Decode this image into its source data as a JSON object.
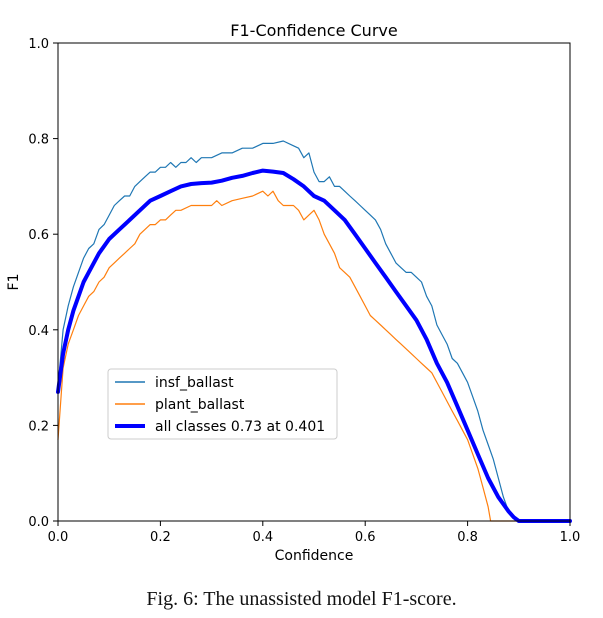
{
  "chart_data": {
    "type": "line",
    "title": "F1-Confidence Curve",
    "xlabel": "Confidence",
    "ylabel": "F1",
    "xlim": [
      0.0,
      1.0
    ],
    "ylim": [
      0.0,
      1.0
    ],
    "xticks": [
      0.0,
      0.2,
      0.4,
      0.6,
      0.8,
      1.0
    ],
    "yticks": [
      0.0,
      0.2,
      0.4,
      0.6,
      0.8,
      1.0
    ],
    "xtick_labels": [
      "0.0",
      "0.2",
      "0.4",
      "0.6",
      "0.8",
      "1.0"
    ],
    "ytick_labels": [
      "0.0",
      "0.2",
      "0.4",
      "0.6",
      "0.8",
      "1.0"
    ],
    "grid": false,
    "legend_position": "lower-left",
    "series": [
      {
        "name": "insf_ballast",
        "color": "#1f77b4",
        "width": "thin",
        "points": [
          [
            0.0,
            0.28
          ],
          [
            0.01,
            0.4
          ],
          [
            0.02,
            0.45
          ],
          [
            0.03,
            0.49
          ],
          [
            0.04,
            0.52
          ],
          [
            0.05,
            0.55
          ],
          [
            0.06,
            0.57
          ],
          [
            0.07,
            0.58
          ],
          [
            0.08,
            0.61
          ],
          [
            0.09,
            0.62
          ],
          [
            0.1,
            0.64
          ],
          [
            0.11,
            0.66
          ],
          [
            0.12,
            0.67
          ],
          [
            0.13,
            0.68
          ],
          [
            0.14,
            0.68
          ],
          [
            0.15,
            0.7
          ],
          [
            0.16,
            0.71
          ],
          [
            0.17,
            0.72
          ],
          [
            0.18,
            0.73
          ],
          [
            0.19,
            0.73
          ],
          [
            0.2,
            0.74
          ],
          [
            0.21,
            0.74
          ],
          [
            0.22,
            0.75
          ],
          [
            0.23,
            0.74
          ],
          [
            0.24,
            0.75
          ],
          [
            0.25,
            0.75
          ],
          [
            0.26,
            0.76
          ],
          [
            0.27,
            0.75
          ],
          [
            0.28,
            0.76
          ],
          [
            0.3,
            0.76
          ],
          [
            0.32,
            0.77
          ],
          [
            0.34,
            0.77
          ],
          [
            0.36,
            0.78
          ],
          [
            0.38,
            0.78
          ],
          [
            0.4,
            0.79
          ],
          [
            0.42,
            0.79
          ],
          [
            0.44,
            0.795
          ],
          [
            0.46,
            0.785
          ],
          [
            0.47,
            0.78
          ],
          [
            0.48,
            0.76
          ],
          [
            0.49,
            0.77
          ],
          [
            0.5,
            0.73
          ],
          [
            0.51,
            0.71
          ],
          [
            0.52,
            0.71
          ],
          [
            0.53,
            0.72
          ],
          [
            0.54,
            0.7
          ],
          [
            0.55,
            0.7
          ],
          [
            0.56,
            0.69
          ],
          [
            0.57,
            0.68
          ],
          [
            0.58,
            0.67
          ],
          [
            0.59,
            0.66
          ],
          [
            0.6,
            0.65
          ],
          [
            0.61,
            0.64
          ],
          [
            0.62,
            0.63
          ],
          [
            0.63,
            0.61
          ],
          [
            0.64,
            0.58
          ],
          [
            0.65,
            0.56
          ],
          [
            0.66,
            0.54
          ],
          [
            0.67,
            0.53
          ],
          [
            0.68,
            0.52
          ],
          [
            0.69,
            0.52
          ],
          [
            0.7,
            0.51
          ],
          [
            0.71,
            0.5
          ],
          [
            0.72,
            0.47
          ],
          [
            0.73,
            0.45
          ],
          [
            0.74,
            0.41
          ],
          [
            0.75,
            0.39
          ],
          [
            0.76,
            0.37
          ],
          [
            0.77,
            0.34
          ],
          [
            0.78,
            0.33
          ],
          [
            0.79,
            0.31
          ],
          [
            0.8,
            0.29
          ],
          [
            0.81,
            0.26
          ],
          [
            0.82,
            0.23
          ],
          [
            0.83,
            0.19
          ],
          [
            0.84,
            0.16
          ],
          [
            0.85,
            0.13
          ],
          [
            0.86,
            0.09
          ],
          [
            0.87,
            0.05
          ],
          [
            0.88,
            0.02
          ],
          [
            0.89,
            0.005
          ],
          [
            0.9,
            0.0
          ],
          [
            1.0,
            0.0
          ]
        ]
      },
      {
        "name": "plant_ballast",
        "color": "#ff7f0e",
        "width": "thin",
        "points": [
          [
            0.0,
            0.17
          ],
          [
            0.01,
            0.32
          ],
          [
            0.02,
            0.37
          ],
          [
            0.03,
            0.4
          ],
          [
            0.04,
            0.43
          ],
          [
            0.05,
            0.45
          ],
          [
            0.06,
            0.47
          ],
          [
            0.07,
            0.48
          ],
          [
            0.08,
            0.5
          ],
          [
            0.09,
            0.51
          ],
          [
            0.1,
            0.53
          ],
          [
            0.11,
            0.54
          ],
          [
            0.12,
            0.55
          ],
          [
            0.13,
            0.56
          ],
          [
            0.14,
            0.57
          ],
          [
            0.15,
            0.58
          ],
          [
            0.16,
            0.6
          ],
          [
            0.17,
            0.61
          ],
          [
            0.18,
            0.62
          ],
          [
            0.19,
            0.62
          ],
          [
            0.2,
            0.63
          ],
          [
            0.21,
            0.63
          ],
          [
            0.22,
            0.64
          ],
          [
            0.23,
            0.65
          ],
          [
            0.24,
            0.65
          ],
          [
            0.26,
            0.66
          ],
          [
            0.28,
            0.66
          ],
          [
            0.3,
            0.66
          ],
          [
            0.31,
            0.67
          ],
          [
            0.32,
            0.66
          ],
          [
            0.34,
            0.67
          ],
          [
            0.36,
            0.675
          ],
          [
            0.38,
            0.68
          ],
          [
            0.4,
            0.69
          ],
          [
            0.41,
            0.68
          ],
          [
            0.42,
            0.69
          ],
          [
            0.43,
            0.67
          ],
          [
            0.44,
            0.66
          ],
          [
            0.46,
            0.66
          ],
          [
            0.47,
            0.65
          ],
          [
            0.48,
            0.63
          ],
          [
            0.49,
            0.64
          ],
          [
            0.5,
            0.65
          ],
          [
            0.51,
            0.63
          ],
          [
            0.52,
            0.6
          ],
          [
            0.53,
            0.58
          ],
          [
            0.54,
            0.56
          ],
          [
            0.55,
            0.53
          ],
          [
            0.56,
            0.52
          ],
          [
            0.57,
            0.51
          ],
          [
            0.58,
            0.49
          ],
          [
            0.59,
            0.47
          ],
          [
            0.6,
            0.45
          ],
          [
            0.61,
            0.43
          ],
          [
            0.62,
            0.42
          ],
          [
            0.63,
            0.41
          ],
          [
            0.64,
            0.4
          ],
          [
            0.65,
            0.39
          ],
          [
            0.66,
            0.38
          ],
          [
            0.67,
            0.37
          ],
          [
            0.68,
            0.36
          ],
          [
            0.69,
            0.35
          ],
          [
            0.7,
            0.34
          ],
          [
            0.71,
            0.33
          ],
          [
            0.72,
            0.32
          ],
          [
            0.73,
            0.31
          ],
          [
            0.74,
            0.29
          ],
          [
            0.75,
            0.27
          ],
          [
            0.76,
            0.25
          ],
          [
            0.77,
            0.23
          ],
          [
            0.78,
            0.21
          ],
          [
            0.79,
            0.19
          ],
          [
            0.8,
            0.17
          ],
          [
            0.81,
            0.14
          ],
          [
            0.82,
            0.11
          ],
          [
            0.83,
            0.07
          ],
          [
            0.84,
            0.03
          ],
          [
            0.845,
            0.0
          ],
          [
            1.0,
            0.0
          ]
        ]
      },
      {
        "name": "all classes 0.73 at 0.401",
        "color": "#0000ff",
        "width": "thick",
        "points": [
          [
            0.0,
            0.27
          ],
          [
            0.01,
            0.35
          ],
          [
            0.02,
            0.4
          ],
          [
            0.03,
            0.44
          ],
          [
            0.04,
            0.47
          ],
          [
            0.05,
            0.5
          ],
          [
            0.06,
            0.52
          ],
          [
            0.07,
            0.54
          ],
          [
            0.08,
            0.56
          ],
          [
            0.09,
            0.575
          ],
          [
            0.1,
            0.59
          ],
          [
            0.12,
            0.61
          ],
          [
            0.14,
            0.63
          ],
          [
            0.16,
            0.65
          ],
          [
            0.18,
            0.67
          ],
          [
            0.2,
            0.68
          ],
          [
            0.22,
            0.69
          ],
          [
            0.24,
            0.7
          ],
          [
            0.26,
            0.705
          ],
          [
            0.28,
            0.707
          ],
          [
            0.3,
            0.708
          ],
          [
            0.32,
            0.712
          ],
          [
            0.34,
            0.718
          ],
          [
            0.36,
            0.722
          ],
          [
            0.38,
            0.728
          ],
          [
            0.4,
            0.733
          ],
          [
            0.42,
            0.731
          ],
          [
            0.44,
            0.728
          ],
          [
            0.46,
            0.715
          ],
          [
            0.48,
            0.7
          ],
          [
            0.5,
            0.68
          ],
          [
            0.52,
            0.67
          ],
          [
            0.54,
            0.65
          ],
          [
            0.56,
            0.63
          ],
          [
            0.58,
            0.6
          ],
          [
            0.6,
            0.57
          ],
          [
            0.62,
            0.54
          ],
          [
            0.64,
            0.51
          ],
          [
            0.66,
            0.48
          ],
          [
            0.68,
            0.45
          ],
          [
            0.7,
            0.42
          ],
          [
            0.72,
            0.38
          ],
          [
            0.74,
            0.33
          ],
          [
            0.76,
            0.29
          ],
          [
            0.78,
            0.24
          ],
          [
            0.8,
            0.19
          ],
          [
            0.82,
            0.14
          ],
          [
            0.84,
            0.09
          ],
          [
            0.86,
            0.05
          ],
          [
            0.88,
            0.02
          ],
          [
            0.89,
            0.008
          ],
          [
            0.9,
            0.0
          ],
          [
            1.0,
            0.0
          ]
        ]
      }
    ]
  },
  "caption": "Fig. 6: The unassisted model F1-score."
}
